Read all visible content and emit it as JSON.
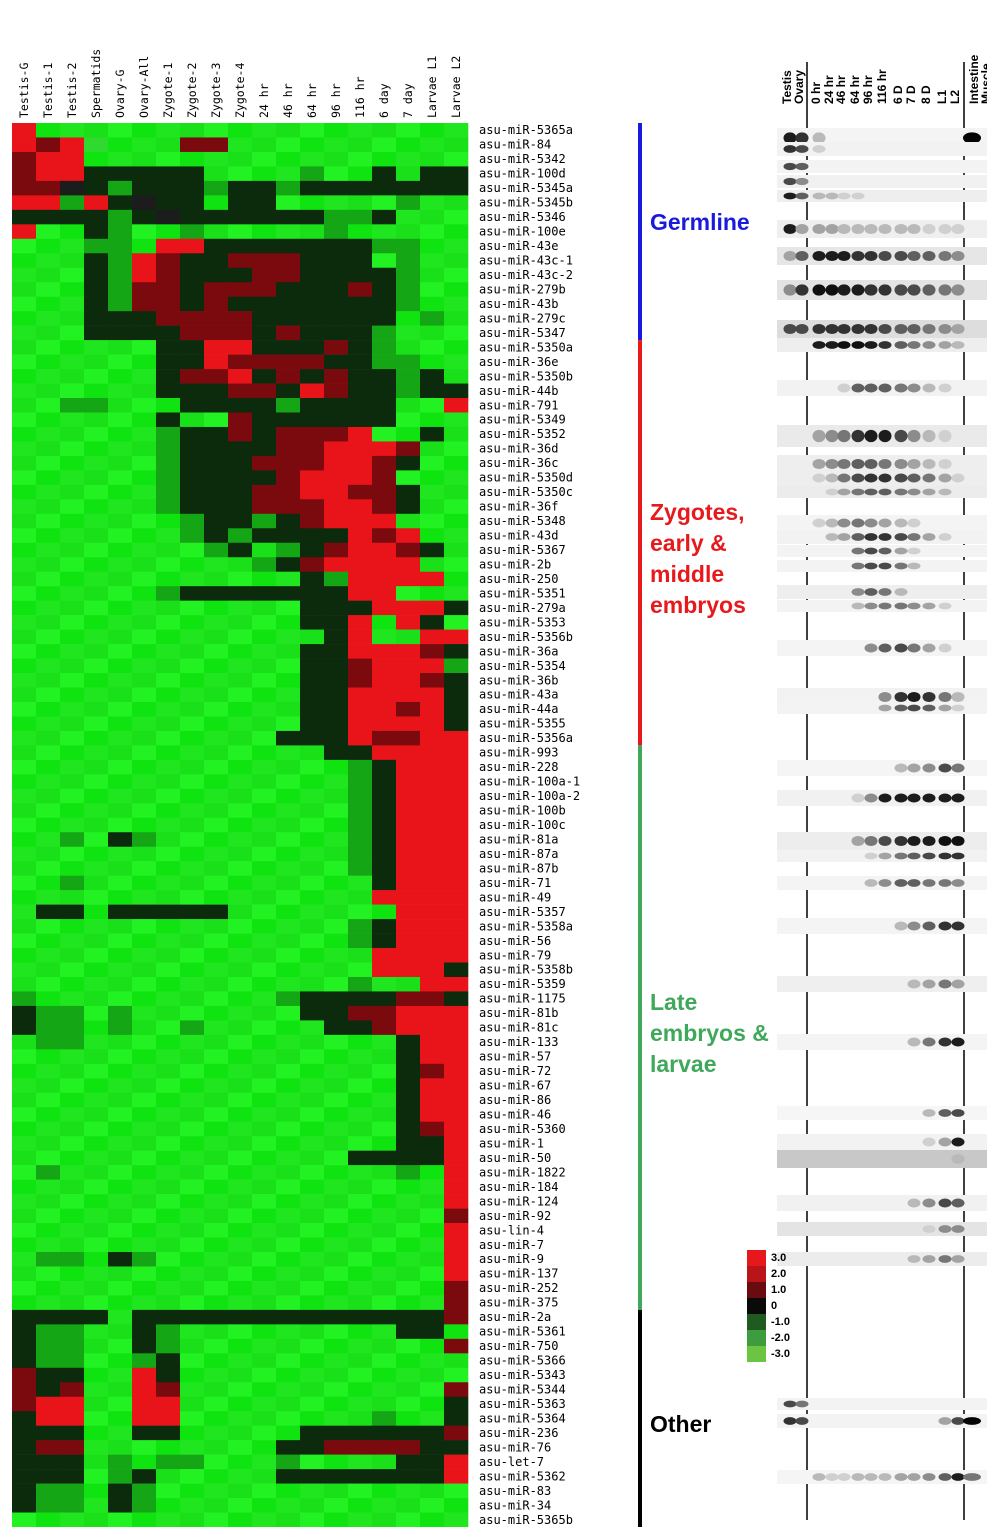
{
  "chart_data": {
    "type": "heatmap",
    "columns": [
      "Testis-G",
      "Testis-1",
      "Testis-2",
      "Spermatids",
      "Ovary-G",
      "Ovary-All",
      "Zygote-1",
      "Zygote-2",
      "Zygote-3",
      "Zygote-4",
      "24 hr",
      "46 hr",
      "64 hr",
      "96 hr",
      "116 hr",
      "6 day",
      "7 day",
      "Larvae L1",
      "Larvae L2"
    ],
    "rows": [
      "asu-miR-5365a",
      "asu-miR-84",
      "asu-miR-5342",
      "asu-miR-100d",
      "asu-miR-5345a",
      "asu-miR-5345b",
      "asu-miR-5346",
      "asu-miR-100e",
      "asu-miR-43e",
      "asu-miR-43c-1",
      "asu-miR-43c-2",
      "asu-miR-279b",
      "asu-miR-43b",
      "asu-miR-279c",
      "asu-miR-5347",
      "asu-miR-5350a",
      "asu-miR-36e",
      "asu-miR-5350b",
      "asu-miR-44b",
      "asu-miR-791",
      "asu-miR-5349",
      "asu-miR-5352",
      "asu-miR-36d",
      "asu-miR-36c",
      "asu-miR-5350d",
      "asu-miR-5350c",
      "asu-miR-36f",
      "asu-miR-5348",
      "asu-miR-43d",
      "asu-miR-5367",
      "asu-miR-2b",
      "asu-miR-250",
      "asu-miR-5351",
      "asu-miR-279a",
      "asu-miR-5353",
      "asu-miR-5356b",
      "asu-miR-36a",
      "asu-miR-5354",
      "asu-miR-36b",
      "asu-miR-43a",
      "asu-miR-44a",
      "asu-miR-5355",
      "asu-miR-5356a",
      "asu-miR-993",
      "asu-miR-228",
      "asu-miR-100a-1",
      "asu-miR-100a-2",
      "asu-miR-100b",
      "asu-miR-100c",
      "asu-miR-81a",
      "asu-miR-87a",
      "asu-miR-87b",
      "asu-miR-71",
      "asu-miR-49",
      "asu-miR-5357",
      "asu-miR-5358a",
      "asu-miR-56",
      "asu-miR-79",
      "asu-miR-5358b",
      "asu-miR-5359",
      "asu-miR-1175",
      "asu-miR-81b",
      "asu-miR-81c",
      "asu-miR-133",
      "asu-miR-57",
      "asu-miR-72",
      "asu-miR-67",
      "asu-miR-86",
      "asu-miR-46",
      "asu-miR-5360",
      "asu-miR-1",
      "asu-miR-50",
      "asu-miR-1822",
      "asu-miR-184",
      "asu-miR-124",
      "asu-miR-92",
      "asu-lin-4",
      "asu-miR-7",
      "asu-miR-9",
      "asu-miR-137",
      "asu-miR-252",
      "asu-miR-375",
      "asu-miR-2a",
      "asu-miR-5361",
      "asu-miR-750",
      "asu-miR-5366",
      "asu-miR-5343",
      "asu-miR-5344",
      "asu-miR-5363",
      "asu-miR-5364",
      "asu-miR-236",
      "asu-miR-76",
      "asu-let-7",
      "asu-miR-5362",
      "asu-miR-83",
      "asu-miR-34",
      "asu-miR-5365b"
    ],
    "groups": [
      {
        "label": "Germline",
        "color": "#1a1adc",
        "first_row": 0,
        "last_row": 14
      },
      {
        "label": "Zygotes,\nearly &\nmiddle\nembryos",
        "color": "#e8191c",
        "first_row": 15,
        "last_row": 42
      },
      {
        "label": "Late\nembryos &\nlarvae",
        "color": "#3fa85a",
        "first_row": 43,
        "last_row": 81
      },
      {
        "label": "Other",
        "color": "#000000",
        "first_row": 82,
        "last_row": 96
      }
    ],
    "color_scale": {
      "ticks": [
        "3.0",
        "2.0",
        "1.0",
        "0",
        "-1.0",
        "-2.0",
        "-3.0"
      ],
      "colors": [
        "#e6181b",
        "#b8141a",
        "#6a0b0f",
        "#0a0a0a",
        "#1f5a1f",
        "#3d9c3d",
        "#6cc443"
      ]
    },
    "heat_rows": [
      "R......................",
      "RhRG   hh               ",
      "hRR....                 ",
      "hRRkkkkk....g..k.kk..gg ",
      "hhKkgkkkgkkgkkkkkkk     ",
      "RRgRkKkk.kk.....g..k..  ",
      "kkkkgkKkkkkkkggk....    ",
      "R..kg..g.....g.....gkkggg",
      "...gg.RRkkkkkkkgg       ",
      "...kgRhkkhhhkkk.g       ",
      "...kgRhkkkhhkkkkg       ",
      "...kghhkhhhkkkhkg       ",
      "...kghhkhkkkkkkkg       ",
      "...kkkhhhhkkkkkk.g      ",
      "...kkkkhhhkhkkkg        ",
      "......kkRRkkkhkg..      ",
      "......kkRhhhhkkgg.      ",
      "......khhRkhkhkkgk.     ",
      "......kkkhhkRhkkgkk     ",
      "..gg...kkkkgkkkk..R.    ",
      "......k..hkkkkkk...     ",
      "......gkkhkhhhR..k.     ",
      "......gkkkkhhRRRh.      ",
      "......gkkkhhhRRhk..     ",
      "......gkkkkhRRRh..      ",
      "......gkkkhhRRhhk.      ",
      "......gkkkhhhRRhk.      ",
      ".......gkkgkhRRR..      ",
      ".......gkgkkkkRhR.      ",
      "........gk.gkhRRhk      ",
      "..........gkhRRRR.      ",
      "............kgRRRR      ",
      "......gkkkkkkkRR..      ",
      "............kkkRRRk     ",
      "............kkR.Rk      ",
      ".............kR..RR     ",
      "............kkRRRhk     ",
      "............kkhRRRg     ",
      "............kkhRRhk     ",
      "............kkRRRRk     ",
      "............kkRRhRk     ",
      "............kkRRRRk     ",
      "...........kkkRhhRR     ",
      ".............kkRRRR     ",
      "..............gkRRR     ",
      "..............gkRRR     ",
      "..............gkRRR     ",
      "..............gkRRR     ",
      "..............gkRRR     ",
      "..g.kg........gkRRR     ",
      "..............gkRRR     ",
      "..............gkRRR     ",
      "..g............kRRR     ",
      "...............RRRR     ",
      ".kk.kkkkk.......RRR     ",
      "..............gkRRR     ",
      "..............gkRRR     ",
      "...............RRRR     ",
      "...............RRRk     ",
      "..............g..RR     ",
      "g..........gkkkkhhk     ",
      "kgg.g.......kkhhRRR     ",
      "kgg.g..g.....kkhRRR     ",
      ".gg.............kRRR    ",
      "................kRRR    ",
      "................khRRR   ",
      "................kRRR    ",
      "................kRRR    ",
      "................kRRR    ",
      "................khRR    ",
      "................kkRR    ",
      "..............kkkkRR    ",
      ".g..............g.RR    ",
      "..................RR    ",
      "..................RR    ",
      "..................hR    ",
      "..................RR    ",
      "..................RR    ",
      ".gg.kg............RR    ",
      "..................RR    ",
      "..................hR    ",
      "..................hh    ",
      "kkkk.kkkkkkkkkkkkkhh    ",
      "kgg..kg.........kk.h    ",
      "kgg..kg...........hh    ",
      "kgg..gk............hk   ",
      "hkk..Rk............hh   ",
      "hkh..Rh...........hh    ",
      "hRR..RR...........kh    ",
      "kRR..RR........g..kR    ",
      "kkk..kk.....kkkkkkhh    ",
      "khh........kkhhhhkk     ",
      "kkk.g.gg...g....kkR     ",
      "kkk.gk.....kkkkkkkR     ",
      "kgg.kg.............k    ",
      "kgg.kg.............k    ",
      "......................  "
    ]
  },
  "blot": {
    "lane_labels": [
      "Testis",
      "Ovary",
      "0 hr",
      "24 hr",
      "46 hr",
      "64 hr",
      "96 hr",
      "116 hr",
      "6 D",
      "7 D",
      "8 D",
      "L1",
      "L2"
    ],
    "tissue_labels": [
      "Intestine",
      "Muscle"
    ]
  }
}
